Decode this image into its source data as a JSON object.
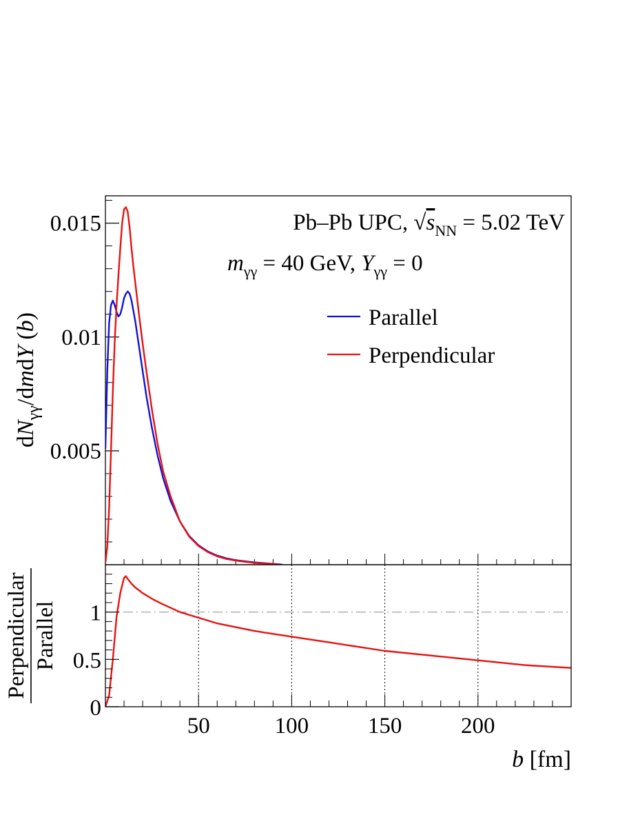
{
  "chart_data": [
    {
      "type": "line",
      "ylabel_parts": {
        "d1": "d",
        "N": "N",
        "sub1": "γγ",
        "mid": "/d",
        "m": "m",
        "d2": "d",
        "Y": "Y",
        "arg": " (",
        "b": "b",
        "close": ")"
      },
      "yticks": [
        "0.015",
        "0.01",
        "0.005"
      ],
      "ytick_values": [
        0.015,
        0.01,
        0.005
      ],
      "ylim": [
        0,
        0.0162
      ],
      "xlim": [
        0,
        250
      ],
      "annotation": {
        "line1": {
          "pre": "Pb–Pb UPC, ",
          "sqrt": "√",
          "s": "s",
          "sub": "NN",
          "post": " = 5.02 TeV"
        },
        "line2": {
          "m": "m",
          "msub": "γγ",
          "mid": " = 40 GeV, ",
          "Y": "Y",
          "ysub": "γγ",
          "post": " = 0"
        }
      },
      "legend": {
        "placement": "top-right",
        "entries": [
          "Parallel",
          "Perpendicular"
        ]
      },
      "series": [
        {
          "name": "Parallel",
          "color": "#1010d8",
          "x": [
            0,
            1,
            2,
            3,
            4,
            5,
            6,
            7,
            8,
            9,
            10,
            11,
            12,
            13,
            14,
            16,
            18,
            20,
            22,
            25,
            28,
            31,
            35,
            40,
            45,
            50,
            55,
            60,
            65,
            70,
            80,
            90,
            95
          ],
          "y": [
            0.0051,
            0.0085,
            0.0106,
            0.0114,
            0.0116,
            0.0114,
            0.0111,
            0.0109,
            0.011,
            0.0113,
            0.0117,
            0.0119,
            0.012,
            0.0119,
            0.0116,
            0.0107,
            0.0096,
            0.0085,
            0.0074,
            0.006,
            0.0048,
            0.0038,
            0.0028,
            0.0019,
            0.00126,
            0.00085,
            0.00058,
            0.0004,
            0.00028,
            0.0002,
            0.0001,
            4e-05,
            0.0
          ]
        },
        {
          "name": "Perpendicular",
          "color": "#e81010",
          "x": [
            0,
            1,
            2,
            3,
            4,
            5,
            6,
            7,
            8,
            9,
            10,
            11,
            12,
            13,
            14,
            15,
            16,
            18,
            20,
            22,
            25,
            28,
            31,
            35,
            40,
            45,
            50,
            55,
            60,
            65,
            70,
            80,
            90,
            93
          ],
          "y": [
            0.0001,
            0.0008,
            0.0025,
            0.005,
            0.0076,
            0.0098,
            0.0114,
            0.0127,
            0.0139,
            0.015,
            0.0156,
            0.0157,
            0.0155,
            0.0148,
            0.0139,
            0.0131,
            0.0124,
            0.011,
            0.0097,
            0.0085,
            0.0068,
            0.0053,
            0.0041,
            0.003,
            0.0019,
            0.00123,
            0.00082,
            0.00055,
            0.00037,
            0.00025,
            0.00018,
            8e-05,
            3e-05,
            0.0
          ]
        }
      ]
    },
    {
      "type": "line",
      "ylabel_top": "Perpendicular",
      "ylabel_bottom": "Parallel",
      "xlabel_b": "b",
      "xlabel_unit": " [fm]",
      "xticks": [
        "50",
        "100",
        "150",
        "200"
      ],
      "xtick_values": [
        50,
        100,
        150,
        200
      ],
      "yticks": [
        "1",
        "0.5",
        "0"
      ],
      "ytick_values": [
        1,
        0.5,
        0
      ],
      "xlim": [
        0,
        250
      ],
      "ylim": [
        0,
        1.5
      ],
      "grid": "vertical dotted at x ticks",
      "reference_line": {
        "y": 1,
        "style": "dash-dot",
        "color": "#aaaaaa"
      },
      "series": [
        {
          "name": "Perpendicular",
          "color": "#e81010",
          "x": [
            0,
            2,
            4,
            6,
            8,
            10,
            11,
            12,
            14,
            16,
            20,
            25,
            30,
            40,
            50,
            60,
            70,
            80,
            90,
            100,
            120,
            150,
            175,
            200,
            225,
            250
          ],
          "y": [
            0.0,
            0.12,
            0.5,
            0.95,
            1.2,
            1.36,
            1.38,
            1.35,
            1.3,
            1.26,
            1.2,
            1.14,
            1.09,
            1.0,
            0.94,
            0.88,
            0.84,
            0.8,
            0.77,
            0.74,
            0.68,
            0.59,
            0.54,
            0.49,
            0.44,
            0.41
          ]
        }
      ]
    }
  ]
}
